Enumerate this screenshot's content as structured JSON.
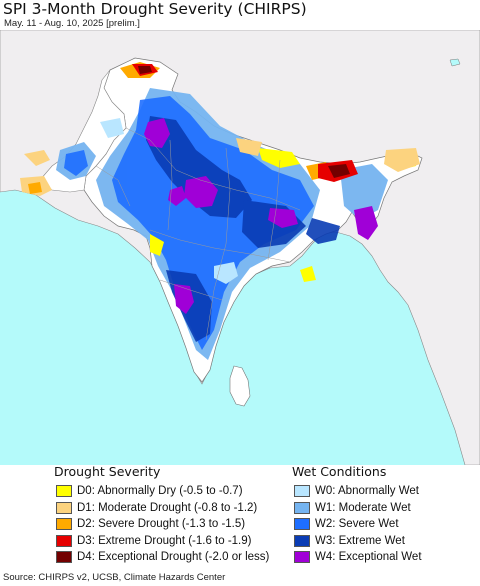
{
  "header": {
    "title": "SPI 3-Month Drought Severity (CHIRPS)",
    "subtitle": "May. 11 - Aug. 10, 2025 [prelim.]"
  },
  "legend": {
    "drought": {
      "heading": "Drought Severity",
      "items": [
        {
          "label": "D0: Abnormally Dry (-0.5 to -0.7)",
          "color": "#ffff00"
        },
        {
          "label": "D1: Moderate Drought (-0.8 to -1.2)",
          "color": "#fcd37f"
        },
        {
          "label": "D2: Severe Drought (-1.3 to -1.5)",
          "color": "#ffaa00"
        },
        {
          "label": "D3: Extreme Drought (-1.6 to -1.9)",
          "color": "#e60000"
        },
        {
          "label": "D4: Exceptional Drought (-2.0 or less)",
          "color": "#730000"
        }
      ]
    },
    "wet": {
      "heading": "Wet Conditions",
      "items": [
        {
          "label": "W0: Abnormally Wet",
          "color": "#b9e6ff"
        },
        {
          "label": "W1: Moderate Wet",
          "color": "#75b4f0"
        },
        {
          "label": "W2: Severe Wet",
          "color": "#1e6eff"
        },
        {
          "label": "W3: Extreme Wet",
          "color": "#0a3cb4"
        },
        {
          "label": "W4: Exceptional Wet",
          "color": "#a000d7"
        }
      ]
    }
  },
  "map_colors": {
    "ocean": "#b4fafa",
    "land_outside": "#f0eef0",
    "land_normal": "#ffffff",
    "border": "#888888"
  },
  "footer": {
    "source": "Source: CHIRPS v2, UCSB, Climate Hazards Center"
  }
}
